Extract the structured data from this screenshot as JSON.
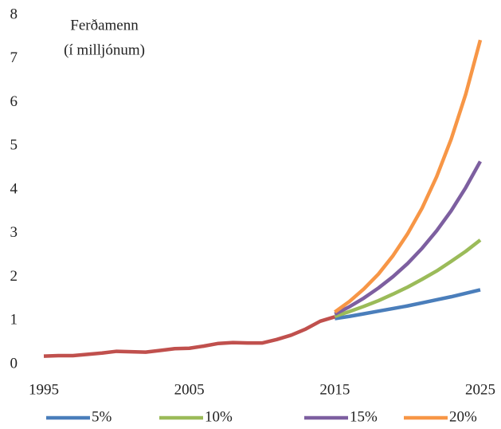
{
  "chart_data": {
    "type": "line",
    "ylabel": [
      "Ferðamenn",
      "(í milljónum)"
    ],
    "xlim": [
      1995,
      2025
    ],
    "xticks": [
      1995,
      2005,
      2015,
      2025
    ],
    "ylim": [
      0,
      8
    ],
    "yticks": [
      0,
      1,
      2,
      3,
      4,
      5,
      6,
      7,
      8
    ],
    "grid": false,
    "legend": "bottom",
    "history": {
      "color": "#c0504d",
      "x": [
        1995,
        1996,
        1997,
        1998,
        1999,
        2000,
        2001,
        2002,
        2003,
        2004,
        2005,
        2006,
        2007,
        2008,
        2009,
        2010,
        2011,
        2012,
        2013,
        2014,
        2015
      ],
      "values": [
        0.19,
        0.2,
        0.2,
        0.23,
        0.26,
        0.3,
        0.29,
        0.28,
        0.32,
        0.36,
        0.37,
        0.42,
        0.48,
        0.5,
        0.49,
        0.49,
        0.57,
        0.67,
        0.81,
        0.99,
        1.09
      ]
    },
    "series": [
      {
        "name": "5%",
        "color": "#4a7ebb",
        "x": [
          2015,
          2016,
          2017,
          2018,
          2019,
          2020,
          2021,
          2022,
          2023,
          2024,
          2025
        ],
        "values": [
          1.05,
          1.1,
          1.16,
          1.22,
          1.28,
          1.34,
          1.41,
          1.48,
          1.55,
          1.63,
          1.71
        ]
      },
      {
        "name": "10%",
        "color": "#9bbb59",
        "x": [
          2015,
          2016,
          2017,
          2018,
          2019,
          2020,
          2021,
          2022,
          2023,
          2024,
          2025
        ],
        "values": [
          1.1,
          1.21,
          1.33,
          1.46,
          1.61,
          1.77,
          1.95,
          2.14,
          2.36,
          2.59,
          2.85
        ]
      },
      {
        "name": "15%",
        "color": "#7d5fa0",
        "x": [
          2015,
          2016,
          2017,
          2018,
          2019,
          2020,
          2021,
          2022,
          2023,
          2024,
          2025
        ],
        "values": [
          1.15,
          1.32,
          1.52,
          1.75,
          2.01,
          2.31,
          2.66,
          3.06,
          3.52,
          4.05,
          4.65
        ]
      },
      {
        "name": "20%",
        "color": "#f79646",
        "x": [
          2015,
          2016,
          2017,
          2018,
          2019,
          2020,
          2021,
          2022,
          2023,
          2024,
          2025
        ],
        "values": [
          1.2,
          1.44,
          1.73,
          2.07,
          2.49,
          2.99,
          3.58,
          4.3,
          5.16,
          6.19,
          7.43
        ]
      }
    ]
  }
}
